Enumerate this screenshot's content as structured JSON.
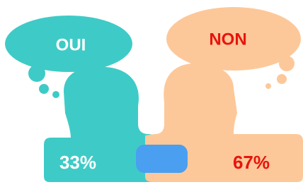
{
  "items": [
    {
      "label": "OUI",
      "value": "33%"
    },
    {
      "label": "NON",
      "value": "67%"
    }
  ]
}
